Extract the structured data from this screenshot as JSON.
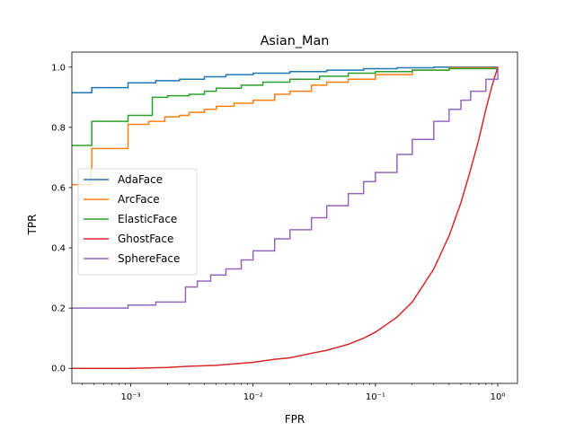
{
  "chart_data": {
    "type": "line",
    "title": "Asian_Man",
    "xlabel": "FPR",
    "ylabel": "TPR",
    "xscale": "log",
    "xlim": [
      0.00033,
      1.45
    ],
    "ylim": [
      -0.05,
      1.05
    ],
    "xticks": [
      {
        "value": 0.001,
        "label": "10⁻³"
      },
      {
        "value": 0.01,
        "label": "10⁻²"
      },
      {
        "value": 0.1,
        "label": "10⁻¹"
      },
      {
        "value": 1,
        "label": "10⁰"
      }
    ],
    "yticks": [
      {
        "value": 0.0,
        "label": "0.0"
      },
      {
        "value": 0.2,
        "label": "0.2"
      },
      {
        "value": 0.4,
        "label": "0.4"
      },
      {
        "value": 0.6,
        "label": "0.6"
      },
      {
        "value": 0.8,
        "label": "0.8"
      },
      {
        "value": 1.0,
        "label": "1.0"
      }
    ],
    "grid": false,
    "legend_position": "center-left",
    "series": [
      {
        "name": "AdaFace",
        "color": "#1f77b4",
        "step": true,
        "points": [
          [
            0.00033,
            0.915
          ],
          [
            0.00048,
            0.932
          ],
          [
            0.00095,
            0.948
          ],
          [
            0.0016,
            0.955
          ],
          [
            0.0025,
            0.96
          ],
          [
            0.004,
            0.968
          ],
          [
            0.006,
            0.975
          ],
          [
            0.01,
            0.98
          ],
          [
            0.02,
            0.985
          ],
          [
            0.04,
            0.99
          ],
          [
            0.08,
            0.995
          ],
          [
            0.15,
            0.998
          ],
          [
            0.3,
            1.0
          ],
          [
            1.0,
            1.0
          ]
        ]
      },
      {
        "name": "ArcFace",
        "color": "#ff7f0e",
        "step": true,
        "points": [
          [
            0.00033,
            0.61
          ],
          [
            0.00046,
            0.61
          ],
          [
            0.00047,
            0.655
          ],
          [
            0.00048,
            0.73
          ],
          [
            0.00095,
            0.81
          ],
          [
            0.0014,
            0.82
          ],
          [
            0.0019,
            0.835
          ],
          [
            0.0025,
            0.84
          ],
          [
            0.003,
            0.85
          ],
          [
            0.004,
            0.86
          ],
          [
            0.005,
            0.87
          ],
          [
            0.007,
            0.88
          ],
          [
            0.01,
            0.89
          ],
          [
            0.015,
            0.91
          ],
          [
            0.02,
            0.92
          ],
          [
            0.03,
            0.94
          ],
          [
            0.04,
            0.95
          ],
          [
            0.06,
            0.96
          ],
          [
            0.1,
            0.975
          ],
          [
            0.2,
            0.99
          ],
          [
            0.4,
            0.998
          ],
          [
            1.0,
            1.0
          ]
        ]
      },
      {
        "name": "ElasticFace",
        "color": "#2ca02c",
        "step": true,
        "points": [
          [
            0.00033,
            0.74
          ],
          [
            0.00048,
            0.82
          ],
          [
            0.00095,
            0.84
          ],
          [
            0.0015,
            0.9
          ],
          [
            0.002,
            0.905
          ],
          [
            0.003,
            0.91
          ],
          [
            0.004,
            0.92
          ],
          [
            0.005,
            0.93
          ],
          [
            0.008,
            0.94
          ],
          [
            0.012,
            0.95
          ],
          [
            0.02,
            0.96
          ],
          [
            0.035,
            0.97
          ],
          [
            0.06,
            0.98
          ],
          [
            0.1,
            0.985
          ],
          [
            0.2,
            0.99
          ],
          [
            0.4,
            0.995
          ],
          [
            1.0,
            1.0
          ]
        ]
      },
      {
        "name": "GhostFace",
        "color": "#d62728",
        "step": false,
        "points": [
          [
            0.00033,
            0.0
          ],
          [
            0.001,
            0.0
          ],
          [
            0.002,
            0.003
          ],
          [
            0.003,
            0.007
          ],
          [
            0.005,
            0.01
          ],
          [
            0.007,
            0.015
          ],
          [
            0.01,
            0.02
          ],
          [
            0.015,
            0.03
          ],
          [
            0.02,
            0.035
          ],
          [
            0.03,
            0.05
          ],
          [
            0.04,
            0.06
          ],
          [
            0.06,
            0.08
          ],
          [
            0.08,
            0.1
          ],
          [
            0.1,
            0.12
          ],
          [
            0.15,
            0.17
          ],
          [
            0.2,
            0.22
          ],
          [
            0.3,
            0.33
          ],
          [
            0.4,
            0.44
          ],
          [
            0.5,
            0.55
          ],
          [
            0.6,
            0.66
          ],
          [
            0.7,
            0.76
          ],
          [
            0.8,
            0.86
          ],
          [
            0.9,
            0.94
          ],
          [
            1.0,
            1.0
          ]
        ]
      },
      {
        "name": "SphereFace",
        "color": "#9467bd",
        "step": true,
        "points": [
          [
            0.00033,
            0.2
          ],
          [
            0.00095,
            0.21
          ],
          [
            0.0016,
            0.22
          ],
          [
            0.0028,
            0.27
          ],
          [
            0.0035,
            0.29
          ],
          [
            0.0045,
            0.31
          ],
          [
            0.006,
            0.33
          ],
          [
            0.008,
            0.36
          ],
          [
            0.01,
            0.39
          ],
          [
            0.015,
            0.43
          ],
          [
            0.02,
            0.46
          ],
          [
            0.03,
            0.5
          ],
          [
            0.04,
            0.54
          ],
          [
            0.06,
            0.58
          ],
          [
            0.08,
            0.62
          ],
          [
            0.1,
            0.65
          ],
          [
            0.15,
            0.71
          ],
          [
            0.2,
            0.76
          ],
          [
            0.3,
            0.82
          ],
          [
            0.4,
            0.86
          ],
          [
            0.5,
            0.89
          ],
          [
            0.6,
            0.92
          ],
          [
            0.8,
            0.96
          ],
          [
            1.0,
            1.0
          ]
        ]
      }
    ]
  }
}
